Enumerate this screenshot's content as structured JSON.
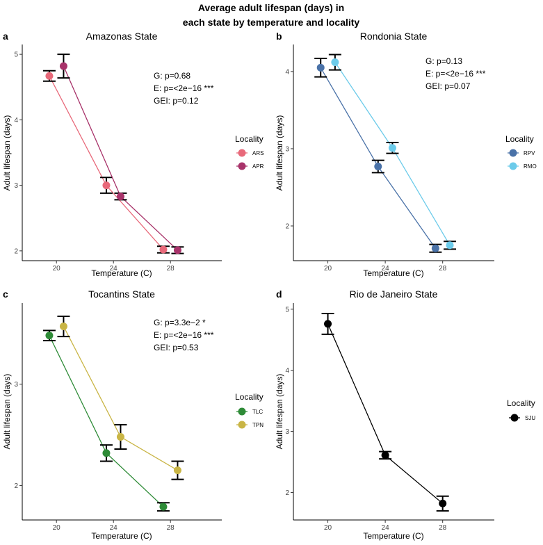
{
  "figure": {
    "title_line1": "Average adult lifespan (days) in",
    "title_line2": "each state by temperature and locality"
  },
  "chart_data": [
    {
      "type": "line",
      "panel_label": "a",
      "title": "Amazonas State",
      "xlabel": "Temperature (C)",
      "ylabel": "Adult lifespan (days)",
      "x": [
        20,
        24,
        28
      ],
      "xticks": [
        20,
        24,
        28
      ],
      "xlim": [
        17.6,
        31.6
      ],
      "yticks": [
        2,
        3,
        4,
        5
      ],
      "ylim": [
        1.85,
        5.15
      ],
      "annotations": [
        "G: p=0.68",
        "E: p=<2e−16 ***",
        "GEI: p=0.12"
      ],
      "legend_title": "Locality",
      "legend_position": "right",
      "series": [
        {
          "name": "ARS",
          "color": "#e8697a",
          "offset": -0.5,
          "values": [
            4.67,
            3.0,
            2.02
          ],
          "errors": [
            0.08,
            0.12,
            0.05
          ]
        },
        {
          "name": "APR",
          "color": "#a8336a",
          "offset": 0.5,
          "values": [
            4.82,
            2.83,
            2.01
          ],
          "errors": [
            0.18,
            0.05,
            0.05
          ]
        }
      ]
    },
    {
      "type": "line",
      "panel_label": "b",
      "title": "Rondonia State",
      "xlabel": "Temperature (C)",
      "ylabel": "Adult lifespan (days)",
      "x": [
        20,
        24,
        28
      ],
      "xticks": [
        20,
        24,
        28
      ],
      "xlim": [
        17.6,
        31.6
      ],
      "yticks": [
        2,
        3,
        4
      ],
      "ylim": [
        1.55,
        4.35
      ],
      "annotations": [
        "G: p=0.13",
        "E: p=<2e−16 ***",
        "GEI: p=0.07"
      ],
      "legend_title": "Locality",
      "legend_position": "right",
      "series": [
        {
          "name": "RPV",
          "color": "#4a72a8",
          "offset": -0.5,
          "values": [
            4.05,
            2.77,
            1.71
          ],
          "errors": [
            0.12,
            0.08,
            0.05
          ]
        },
        {
          "name": "RMO",
          "color": "#6ccbea",
          "offset": 0.5,
          "values": [
            4.12,
            3.01,
            1.75
          ],
          "errors": [
            0.1,
            0.07,
            0.05
          ]
        }
      ]
    },
    {
      "type": "line",
      "panel_label": "c",
      "title": "Tocantins State",
      "xlabel": "Temperature (C)",
      "ylabel": "Adult lifespan (days)",
      "x": [
        20,
        24,
        28
      ],
      "xticks": [
        20,
        24,
        28
      ],
      "xlim": [
        17.6,
        31.6
      ],
      "yticks": [
        2,
        3
      ],
      "ylim": [
        1.66,
        3.8
      ],
      "annotations": [
        "G: p=3.3e−2 *",
        "E: p=<2e−16 ***",
        "GEI: p=0.53"
      ],
      "legend_title": "Locality",
      "legend_position": "right",
      "series": [
        {
          "name": "TLC",
          "color": "#2e8b37",
          "offset": -0.5,
          "values": [
            3.48,
            2.32,
            1.79
          ],
          "errors": [
            0.05,
            0.08,
            0.04
          ]
        },
        {
          "name": "TPN",
          "color": "#c9b545",
          "offset": 0.5,
          "values": [
            3.57,
            2.48,
            2.15
          ],
          "errors": [
            0.1,
            0.12,
            0.09
          ]
        }
      ]
    },
    {
      "type": "line",
      "panel_label": "d",
      "title": "Rio de Janeiro State",
      "xlabel": "Temperature (C)",
      "ylabel": "Adult lifespan (days)",
      "x": [
        20,
        24,
        28
      ],
      "xticks": [
        20,
        24,
        28
      ],
      "xlim": [
        17.6,
        31.6
      ],
      "yticks": [
        2,
        3,
        4,
        5
      ],
      "ylim": [
        1.55,
        5.1
      ],
      "annotations": [],
      "legend_title": "Locality",
      "legend_position": "right",
      "series": [
        {
          "name": "SJU",
          "color": "#000000",
          "offset": 0,
          "values": [
            4.76,
            2.61,
            1.82
          ],
          "errors": [
            0.17,
            0.06,
            0.12
          ]
        }
      ]
    }
  ]
}
